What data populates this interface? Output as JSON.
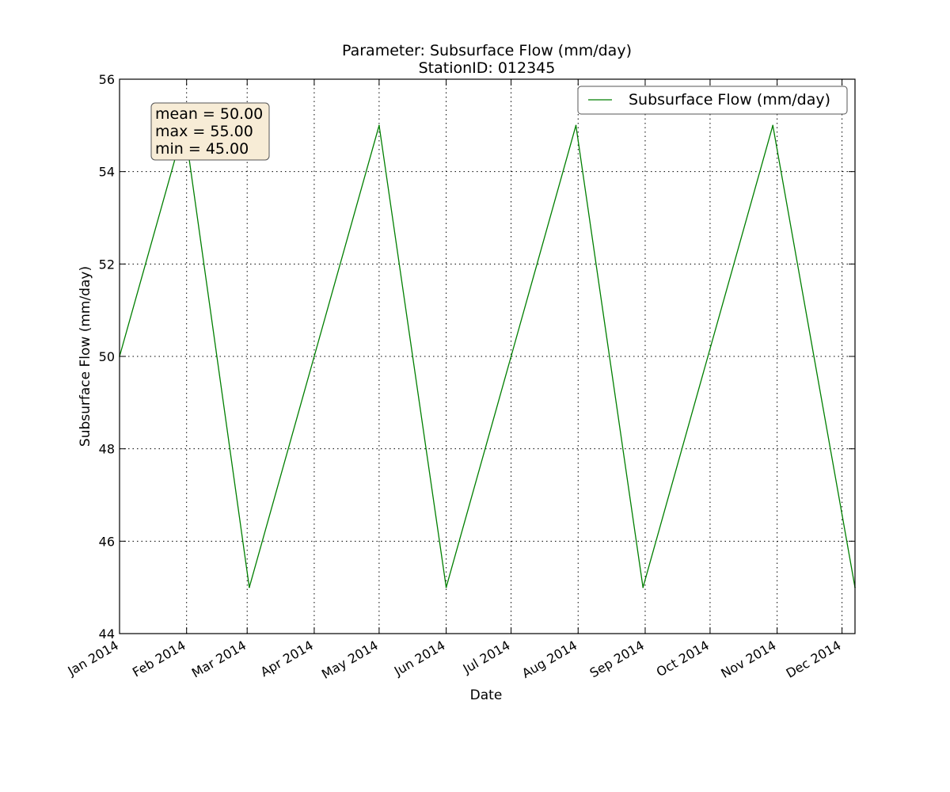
{
  "chart_data": {
    "type": "line",
    "title": [
      "Parameter: Subsurface Flow (mm/day)",
      "StationID: 012345"
    ],
    "xlabel": "Date",
    "ylabel": "Subsurface Flow (mm/day)",
    "xlim": [
      "2014-01-01",
      "2014-12-07"
    ],
    "ylim": [
      44,
      56
    ],
    "x_ticks": [
      {
        "date": "2014-01-01",
        "label": "Jan 2014"
      },
      {
        "date": "2014-02-01",
        "label": "Feb 2014"
      },
      {
        "date": "2014-03-01",
        "label": "Mar 2014"
      },
      {
        "date": "2014-04-01",
        "label": "Apr 2014"
      },
      {
        "date": "2014-05-01",
        "label": "May 2014"
      },
      {
        "date": "2014-06-01",
        "label": "Jun 2014"
      },
      {
        "date": "2014-07-01",
        "label": "Jul 2014"
      },
      {
        "date": "2014-08-01",
        "label": "Aug 2014"
      },
      {
        "date": "2014-09-01",
        "label": "Sep 2014"
      },
      {
        "date": "2014-10-01",
        "label": "Oct 2014"
      },
      {
        "date": "2014-11-01",
        "label": "Nov 2014"
      },
      {
        "date": "2014-12-01",
        "label": "Dec 2014"
      }
    ],
    "y_ticks": [
      44,
      46,
      48,
      50,
      52,
      54,
      56
    ],
    "grid": true,
    "legend_position": "top-right",
    "series": [
      {
        "name": "Subsurface Flow (mm/day)",
        "color": "#007f00",
        "points": [
          {
            "x": "2014-01-01",
            "y": 50
          },
          {
            "x": "2014-01-31",
            "y": 55
          },
          {
            "x": "2014-03-02",
            "y": 45
          },
          {
            "x": "2014-04-01",
            "y": 50
          },
          {
            "x": "2014-05-01",
            "y": 55
          },
          {
            "x": "2014-06-01",
            "y": 45
          },
          {
            "x": "2014-07-01",
            "y": 50
          },
          {
            "x": "2014-07-31",
            "y": 55
          },
          {
            "x": "2014-08-31",
            "y": 45
          },
          {
            "x": "2014-09-30",
            "y": 50
          },
          {
            "x": "2014-10-30",
            "y": 55
          },
          {
            "x": "2014-12-07",
            "y": 45
          }
        ]
      }
    ],
    "stats_box": {
      "lines": [
        "mean = 50.00",
        "max = 55.00",
        "min = 45.00"
      ],
      "background": "#f7ecd6",
      "border": "#555555"
    }
  }
}
